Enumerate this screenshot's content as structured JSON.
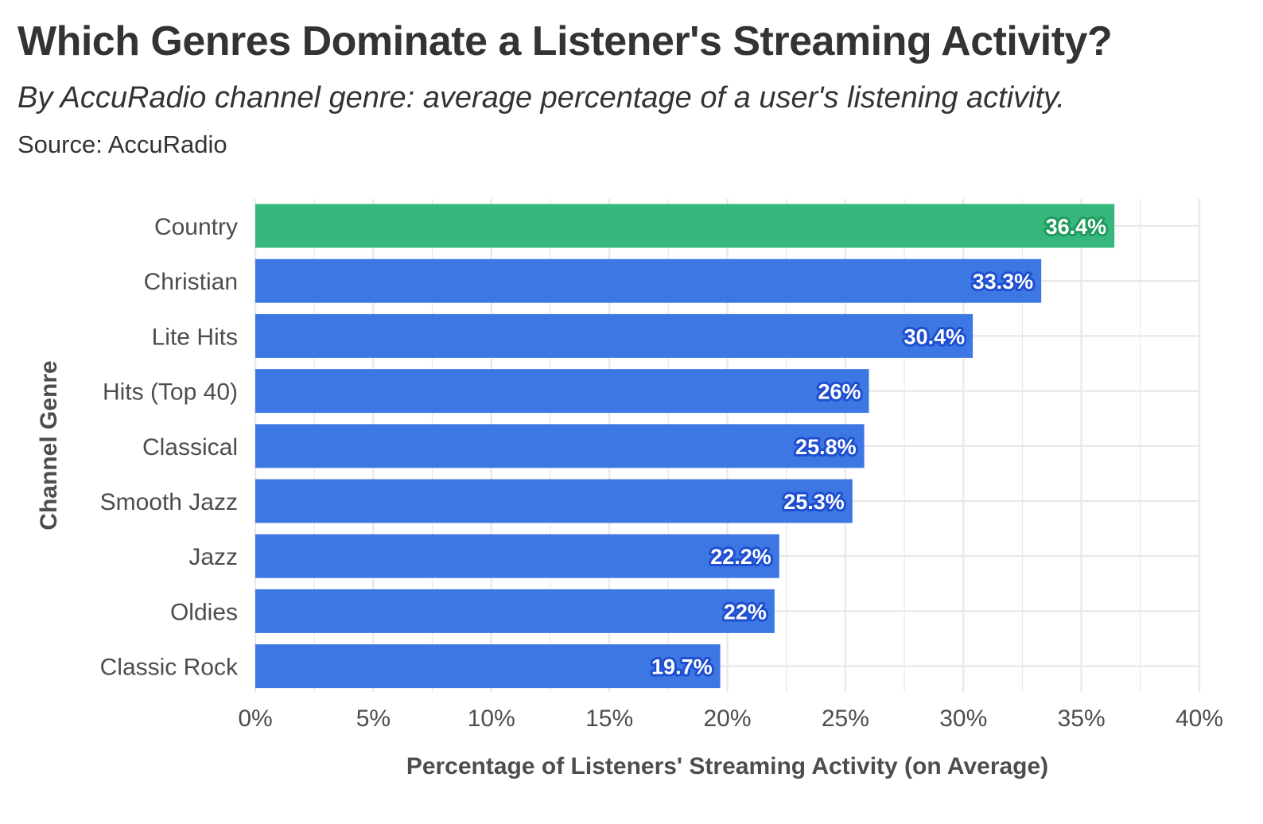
{
  "chart_data": {
    "type": "bar",
    "orientation": "horizontal",
    "title": "Which Genres Dominate a Listener's Streaming Activity?",
    "subtitle": "By AccuRadio channel genre: average percentage of a user's listening activity.",
    "caption": "Source: AccuRadio",
    "xlabel": "Percentage of Listeners' Streaming Activity (on Average)",
    "ylabel": "Channel Genre",
    "xlim": [
      0,
      40
    ],
    "x_ticks": [
      0,
      5,
      10,
      15,
      20,
      25,
      30,
      35,
      40
    ],
    "x_tick_labels": [
      "0%",
      "5%",
      "10%",
      "15%",
      "20%",
      "25%",
      "30%",
      "35%",
      "40%"
    ],
    "grid": true,
    "categories": [
      "Country",
      "Christian",
      "Lite Hits",
      "Hits (Top 40)",
      "Classical",
      "Smooth Jazz",
      "Jazz",
      "Oldies",
      "Classic Rock"
    ],
    "values": [
      36.4,
      33.3,
      30.4,
      26,
      25.8,
      25.3,
      22.2,
      22,
      19.7
    ],
    "value_labels": [
      "36.4%",
      "33.3%",
      "30.4%",
      "26%",
      "25.8%",
      "25.3%",
      "22.2%",
      "22%",
      "19.7%"
    ],
    "highlight_index": 0,
    "colors": {
      "highlight": "#36b87c",
      "highlight_label_outline": "#1e9a5e",
      "bar": "#3d77e3",
      "bar_label_outline": "#1f4fd0",
      "grid": "#e9e9e9",
      "text": "#333333",
      "axis_text": "#4d4d4d"
    }
  }
}
